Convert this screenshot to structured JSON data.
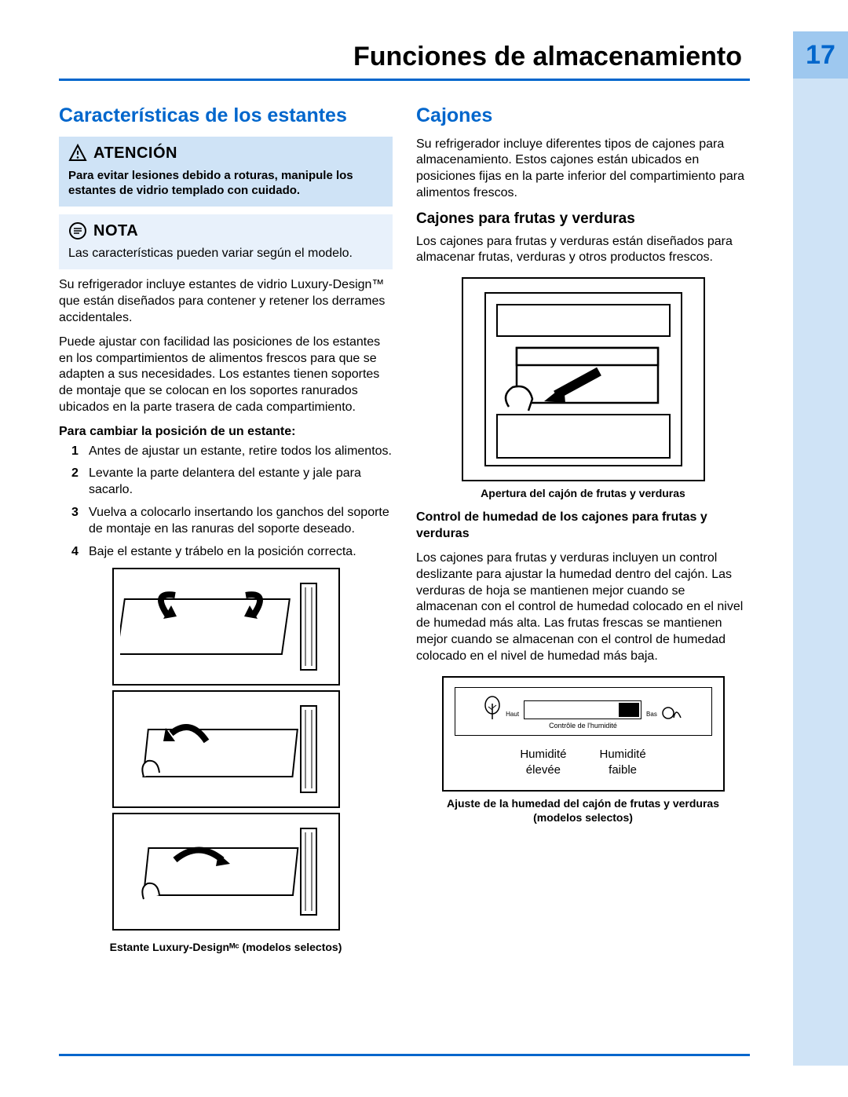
{
  "page": {
    "number": "17",
    "title": "Funciones de almacenamiento",
    "accent_color": "#0066cc",
    "tab_bg": "#9ec8ef",
    "strip_bg": "#cfe3f6"
  },
  "left": {
    "heading": "Características de los estantes",
    "attention": {
      "title": "ATENCIÓN",
      "body": "Para evitar lesiones debido a roturas, manipule los estantes de vidrio templado con cuidado."
    },
    "note": {
      "title": "NOTA",
      "body": "Las características pueden variar según el modelo."
    },
    "para1": "Su refrigerador incluye estantes de vidrio Luxury-Design™ que están diseñados para contener y retener los derrames accidentales.",
    "para2": "Puede ajustar con facilidad las posiciones de los estantes en los compartimientos de alimentos frescos para que se adapten a sus necesidades. Los estantes tienen soportes de montaje que se colocan en los soportes ranurados ubicados en la parte trasera de cada compartimiento.",
    "steps_title": "Para cambiar la posición de un estante:",
    "steps": [
      "Antes de ajustar un estante, retire todos los alimentos.",
      "Levante la parte delantera del estante y jale para sacarlo.",
      "Vuelva a colocarlo insertando los ganchos del soporte de montaje en las ranuras del soporte deseado.",
      "Baje el estante y trábelo en la posición correcta."
    ],
    "figure_caption": "Estante Luxury-Designᴹᶜ (modelos selectos)"
  },
  "right": {
    "heading": "Cajones",
    "intro": "Su refrigerador incluye diferentes tipos de cajones para almacenamiento. Estos cajones están ubicados en posiciones fijas en la parte inferior del compartimiento para alimentos frescos.",
    "sub1": "Cajones para frutas y verduras",
    "sub1_body": "Los cajones para frutas y verduras están diseñados para almacenar frutas, verduras y otros productos frescos.",
    "fig1_caption": "Apertura del cajón de frutas y verduras",
    "sub2": "Control de humedad de los cajones para frutas y verduras",
    "sub2_body": "Los cajones para frutas y verduras incluyen un control deslizante para ajustar la humedad dentro del cajón.  Las verduras de hoja se mantienen mejor cuando se almacenan con el control de humedad colocado en el nivel de humedad más alta.  Las frutas frescas se mantienen mejor cuando se almacenan con el control de humedad colocado en el nivel de humedad más baja.",
    "humidity": {
      "haut": "Haut",
      "bas": "Bas",
      "control_label": "Contrôle de l'humidité",
      "high": "Humidité élevée",
      "low": "Humidité faible"
    },
    "fig2_caption_line1": "Ajuste de la humedad del cajón de frutas y verduras",
    "fig2_caption_line2": "(modelos selectos)"
  }
}
